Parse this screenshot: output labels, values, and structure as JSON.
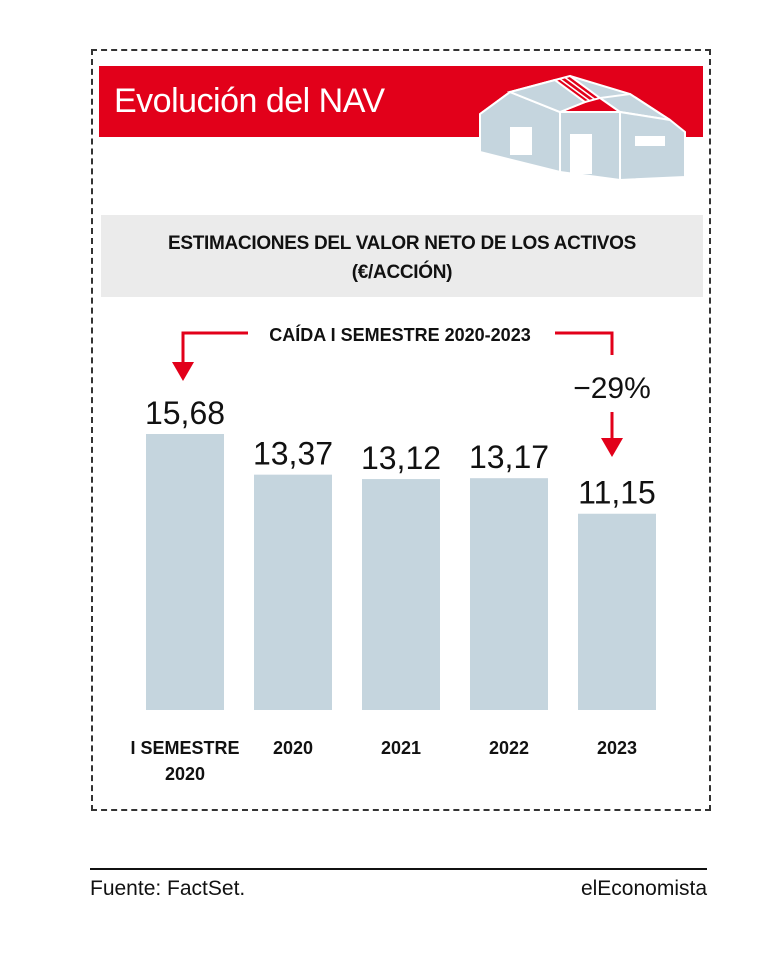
{
  "header": {
    "title": "Evolución del NAV",
    "subtitle_line1": "ESTIMACIONES DEL VALOR NETO DE LOS ACTIVOS",
    "subtitle_line2": "(€/ACCIÓN)"
  },
  "annotation": {
    "label": "CAÍDA I SEMESTRE 2020-2023",
    "change": "−29%"
  },
  "colors": {
    "accent": "#e2001a",
    "bar": "#c5d5de",
    "building": "#c5d5de"
  },
  "chart_data": {
    "type": "bar",
    "categories": [
      [
        "I SEMESTRE",
        "2020"
      ],
      [
        "2020"
      ],
      [
        "2021"
      ],
      [
        "2022"
      ],
      [
        "2023"
      ]
    ],
    "values": [
      15.68,
      13.37,
      13.12,
      13.17,
      11.15
    ],
    "value_labels": [
      "15,68",
      "13,37",
      "13,12",
      "13,17",
      "11,15"
    ],
    "title": "Evolución del NAV",
    "subtitle": "ESTIMACIONES DEL VALOR NETO DE LOS ACTIVOS (€/ACCIÓN)",
    "xlabel": "",
    "ylabel": "",
    "ylim": [
      0,
      15.68
    ],
    "grid": false
  },
  "footer": {
    "source": "Fuente: FactSet.",
    "brand": "elEconomista"
  }
}
